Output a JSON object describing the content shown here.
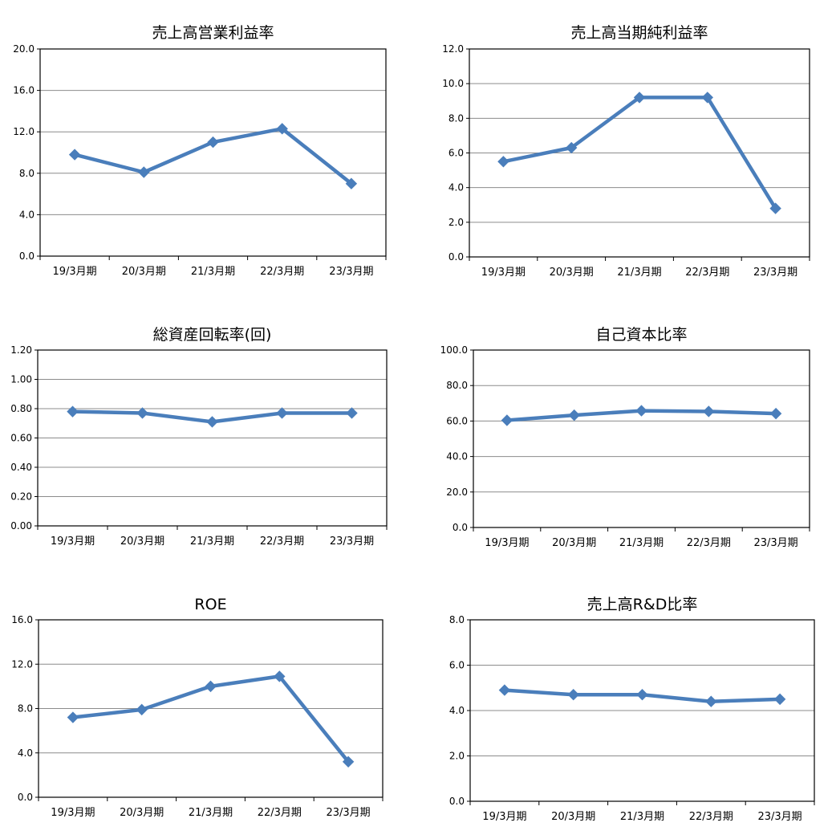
{
  "chart_data": [
    {
      "type": "line",
      "title": "売上高営業利益率",
      "categories": [
        "19/3月期",
        "20/3月期",
        "21/3月期",
        "22/3月期",
        "23/3月期"
      ],
      "yticks": [
        "0.0",
        "4.0",
        "8.0",
        "12.0",
        "16.0",
        "20.0"
      ],
      "ylim": [
        0,
        20
      ],
      "values": [
        9.8,
        8.1,
        11.0,
        12.3,
        7.0
      ],
      "grid": true,
      "legend": "none",
      "color": "#4a7ebb"
    },
    {
      "type": "line",
      "title": "売上高当期純利益率",
      "categories": [
        "19/3月期",
        "20/3月期",
        "21/3月期",
        "22/3月期",
        "23/3月期"
      ],
      "yticks": [
        "0.0",
        "2.0",
        "4.0",
        "6.0",
        "8.0",
        "10.0",
        "12.0"
      ],
      "ylim": [
        0,
        12
      ],
      "values": [
        5.5,
        6.3,
        9.2,
        9.2,
        2.8
      ],
      "grid": true,
      "legend": "none",
      "color": "#4a7ebb"
    },
    {
      "type": "line",
      "title": "総資産回転率(回)",
      "categories": [
        "19/3月期",
        "20/3月期",
        "21/3月期",
        "22/3月期",
        "23/3月期"
      ],
      "yticks": [
        "0.00",
        "0.20",
        "0.40",
        "0.60",
        "0.80",
        "1.00",
        "1.20"
      ],
      "ylim": [
        0,
        1.2
      ],
      "values": [
        0.78,
        0.77,
        0.71,
        0.77,
        0.77
      ],
      "grid": true,
      "legend": "none",
      "color": "#4a7ebb"
    },
    {
      "type": "line",
      "title": "自己資本比率",
      "categories": [
        "19/3月期",
        "20/3月期",
        "21/3月期",
        "22/3月期",
        "23/3月期"
      ],
      "yticks": [
        "0.0",
        "20.0",
        "40.0",
        "60.0",
        "80.0",
        "100.0"
      ],
      "ylim": [
        0,
        100
      ],
      "values": [
        60.4,
        63.3,
        65.8,
        65.4,
        64.2
      ],
      "grid": true,
      "legend": "none",
      "color": "#4a7ebb"
    },
    {
      "type": "line",
      "title": "ROE",
      "categories": [
        "19/3月期",
        "20/3月期",
        "21/3月期",
        "22/3月期",
        "23/3月期"
      ],
      "yticks": [
        "0.0",
        "4.0",
        "8.0",
        "12.0",
        "16.0"
      ],
      "ylim": [
        0,
        16
      ],
      "values": [
        7.2,
        7.9,
        10.0,
        10.9,
        3.2
      ],
      "grid": true,
      "legend": "none",
      "color": "#4a7ebb"
    },
    {
      "type": "line",
      "title": "売上高R&D比率",
      "categories": [
        "19/3月期",
        "20/3月期",
        "21/3月期",
        "22/3月期",
        "23/3月期"
      ],
      "yticks": [
        "0.0",
        "2.0",
        "4.0",
        "6.0",
        "8.0"
      ],
      "ylim": [
        0,
        8
      ],
      "values": [
        4.9,
        4.7,
        4.7,
        4.4,
        4.5
      ],
      "grid": true,
      "legend": "none",
      "color": "#4a7ebb"
    }
  ]
}
